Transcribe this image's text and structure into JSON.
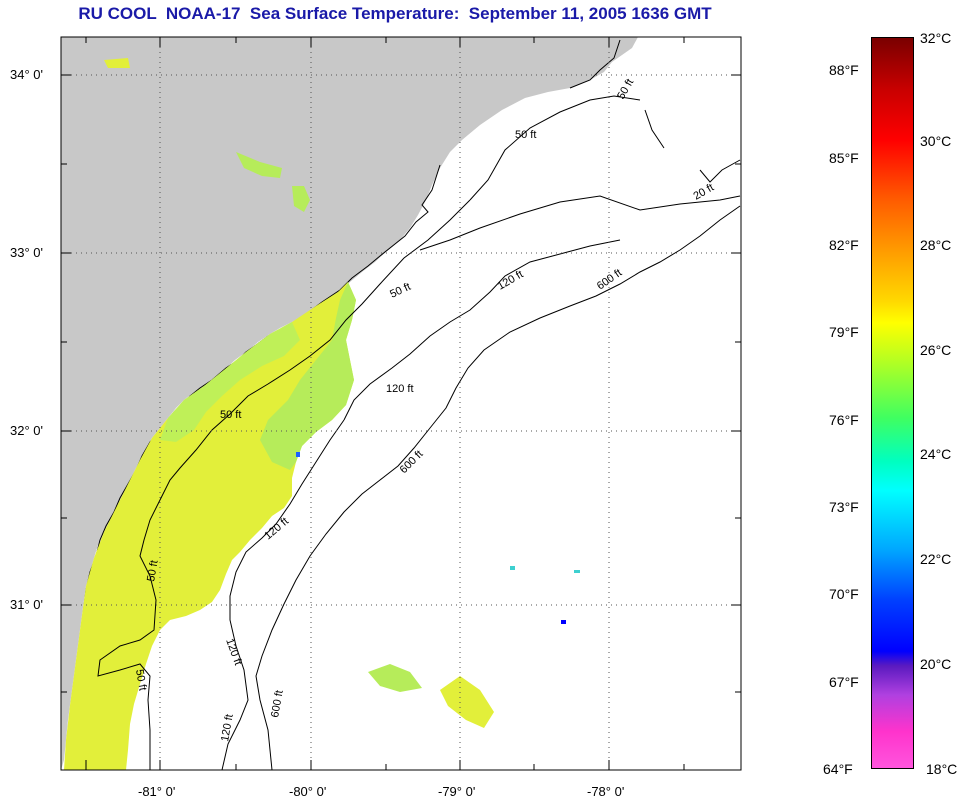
{
  "title": "RU COOL  NOAA-17  Sea Surface Temperature:  September 11, 2005 1636 GMT",
  "map": {
    "lat_labels": [
      "34° 0'",
      "33° 0'",
      "32° 0'",
      "31° 0'"
    ],
    "lon_labels": [
      "-81° 0'",
      "-80° 0'",
      "-79° 0'",
      "-78° 0'"
    ],
    "contour_labels": [
      "50 ft",
      "20 ft",
      "120 ft",
      "600 ft"
    ]
  },
  "colorbar": {
    "fahrenheit": [
      "88°F",
      "85°F",
      "82°F",
      "79°F",
      "76°F",
      "73°F",
      "70°F",
      "67°F",
      "64°F"
    ],
    "celsius": [
      "32°C",
      "30°C",
      "28°C",
      "26°C",
      "24°C",
      "22°C",
      "20°C",
      "18°C"
    ]
  },
  "colors": {
    "land": "#c8c8c8",
    "ocean": "#ffffff",
    "title": "#1a1aa8",
    "sst_warm": "#e2ef3a",
    "sst_green": "#b6ec5a",
    "grid": "#000000"
  }
}
